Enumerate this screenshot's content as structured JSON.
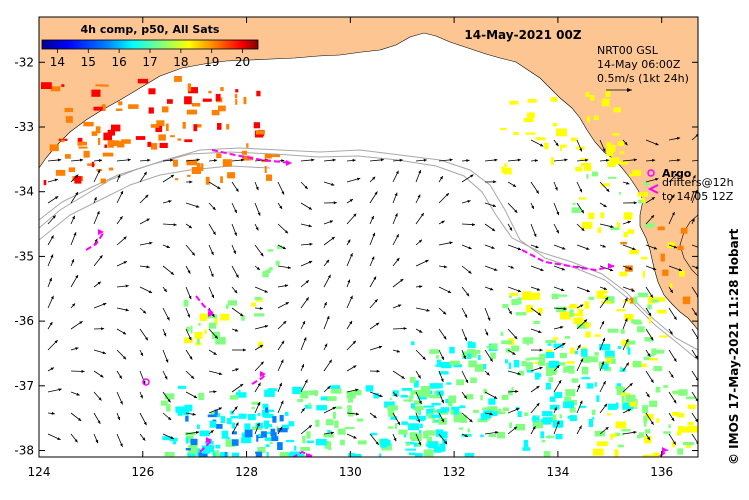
{
  "title": "14-May-2021 00Z",
  "colorbar": {
    "title": "4h comp, p50, All Sats",
    "ticks": [
      "14",
      "15",
      "16",
      "17",
      "18",
      "19",
      "20"
    ],
    "min": 13.5,
    "max": 20.5
  },
  "product": {
    "line1": "NRT00 GSL",
    "line2": "14-May 06:00Z",
    "line3": "0.5m/s (1kt 24h)"
  },
  "legend": {
    "argo_label": "Argo",
    "drifters_line1": "drifters@12h",
    "drifters_line2": "to 14/05 12Z"
  },
  "credit": "© IMOS 17-May-2021 11:28 Hobart",
  "axes": {
    "lon_ticks": [
      "124",
      "126",
      "128",
      "130",
      "132",
      "134",
      "136"
    ],
    "lat_ticks": [
      "-32",
      "-33",
      "-34",
      "-35",
      "-36",
      "-37",
      "-38"
    ],
    "lon_range": [
      124,
      136.7
    ],
    "lat_range": [
      -31.3,
      -38.1
    ]
  },
  "colors": {
    "land": "#fdc592",
    "ocean": "#ffffff",
    "bathymetry": "#a8a8a8",
    "drifter": "#ff00ff",
    "vector": "#000000"
  },
  "colormap": [
    "#00008f",
    "#0000ff",
    "#0080ff",
    "#00ffff",
    "#80ff80",
    "#ffff00",
    "#ff8000",
    "#ff0000",
    "#800000"
  ]
}
